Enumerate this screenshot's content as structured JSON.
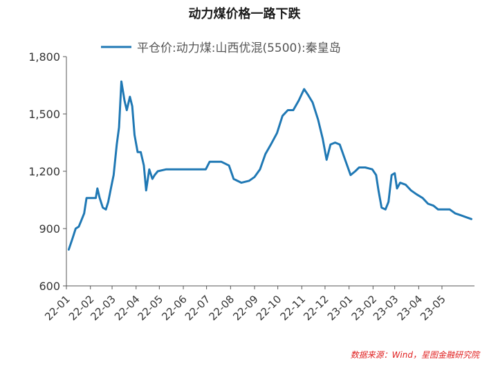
{
  "chart_data": {
    "type": "line",
    "title": "动力煤价格一路下跌",
    "source": "数据来源：Wind，星图金融研究院",
    "xlabel": "",
    "ylabel": "",
    "ylim": [
      600,
      1800
    ],
    "yticks": [
      600,
      900,
      1200,
      1500,
      1800
    ],
    "ytick_labels": [
      "600",
      "900",
      "1,200",
      "1,500",
      "1,800"
    ],
    "xlim": [
      "2022-01-01",
      "2023-06-12"
    ],
    "xticks": [
      {
        "date": "2022-01-01",
        "label": "22-01"
      },
      {
        "date": "2022-02-01",
        "label": "22-02"
      },
      {
        "date": "2022-03-01",
        "label": "22-03"
      },
      {
        "date": "2022-04-01",
        "label": "22-04"
      },
      {
        "date": "2022-05-01",
        "label": "22-05"
      },
      {
        "date": "2022-06-01",
        "label": "22-06"
      },
      {
        "date": "2022-07-01",
        "label": "22-07"
      },
      {
        "date": "2022-08-01",
        "label": "22-08"
      },
      {
        "date": "2022-09-01",
        "label": "22-09"
      },
      {
        "date": "2022-10-01",
        "label": "22-10"
      },
      {
        "date": "2022-11-01",
        "label": "22-11"
      },
      {
        "date": "2022-12-01",
        "label": "22-12"
      },
      {
        "date": "2023-01-01",
        "label": "23-01"
      },
      {
        "date": "2023-02-01",
        "label": "23-02"
      },
      {
        "date": "2023-03-01",
        "label": "23-03"
      },
      {
        "date": "2023-04-01",
        "label": "23-04"
      },
      {
        "date": "2023-05-01",
        "label": "23-05"
      }
    ],
    "grid": false,
    "legend_position": "top",
    "colors": {
      "series": "#1f78b4",
      "axis": "#555555",
      "source": "#e02020"
    },
    "series": [
      {
        "name": "平仓价:动力煤:山西优混(5500):秦皇岛",
        "points": [
          [
            "2022-01-04",
            790
          ],
          [
            "2022-01-09",
            850
          ],
          [
            "2022-01-13",
            900
          ],
          [
            "2022-01-17",
            910
          ],
          [
            "2022-01-20",
            940
          ],
          [
            "2022-01-24",
            980
          ],
          [
            "2022-01-27",
            1060
          ],
          [
            "2022-01-31",
            1060
          ],
          [
            "2022-02-04",
            1060
          ],
          [
            "2022-02-08",
            1060
          ],
          [
            "2022-02-10",
            1110
          ],
          [
            "2022-02-13",
            1060
          ],
          [
            "2022-02-17",
            1010
          ],
          [
            "2022-02-21",
            1000
          ],
          [
            "2022-02-24",
            1040
          ],
          [
            "2022-02-28",
            1120
          ],
          [
            "2022-03-03",
            1180
          ],
          [
            "2022-03-07",
            1340
          ],
          [
            "2022-03-10",
            1430
          ],
          [
            "2022-03-13",
            1670
          ],
          [
            "2022-03-17",
            1570
          ],
          [
            "2022-03-20",
            1520
          ],
          [
            "2022-03-24",
            1590
          ],
          [
            "2022-03-27",
            1540
          ],
          [
            "2022-03-30",
            1390
          ],
          [
            "2022-04-03",
            1300
          ],
          [
            "2022-04-07",
            1300
          ],
          [
            "2022-04-11",
            1230
          ],
          [
            "2022-04-14",
            1100
          ],
          [
            "2022-04-18",
            1210
          ],
          [
            "2022-04-22",
            1160
          ],
          [
            "2022-04-25",
            1180
          ],
          [
            "2022-04-29",
            1200
          ],
          [
            "2022-05-10",
            1210
          ],
          [
            "2022-06-01",
            1210
          ],
          [
            "2022-06-20",
            1210
          ],
          [
            "2022-06-30",
            1210
          ],
          [
            "2022-07-05",
            1250
          ],
          [
            "2022-07-20",
            1250
          ],
          [
            "2022-07-30",
            1230
          ],
          [
            "2022-08-05",
            1160
          ],
          [
            "2022-08-15",
            1140
          ],
          [
            "2022-08-25",
            1150
          ],
          [
            "2022-09-01",
            1170
          ],
          [
            "2022-09-08",
            1210
          ],
          [
            "2022-09-15",
            1290
          ],
          [
            "2022-09-22",
            1340
          ],
          [
            "2022-09-30",
            1400
          ],
          [
            "2022-10-07",
            1490
          ],
          [
            "2022-10-14",
            1520
          ],
          [
            "2022-10-21",
            1520
          ],
          [
            "2022-10-28",
            1570
          ],
          [
            "2022-11-04",
            1630
          ],
          [
            "2022-11-09",
            1600
          ],
          [
            "2022-11-15",
            1560
          ],
          [
            "2022-11-22",
            1470
          ],
          [
            "2022-11-28",
            1370
          ],
          [
            "2022-12-03",
            1260
          ],
          [
            "2022-12-08",
            1340
          ],
          [
            "2022-12-14",
            1350
          ],
          [
            "2022-12-20",
            1340
          ],
          [
            "2022-12-27",
            1260
          ],
          [
            "2023-01-03",
            1180
          ],
          [
            "2023-01-09",
            1200
          ],
          [
            "2023-01-14",
            1220
          ],
          [
            "2023-01-22",
            1220
          ],
          [
            "2023-01-31",
            1210
          ],
          [
            "2023-02-05",
            1180
          ],
          [
            "2023-02-08",
            1100
          ],
          [
            "2023-02-12",
            1010
          ],
          [
            "2023-02-17",
            1000
          ],
          [
            "2023-02-21",
            1040
          ],
          [
            "2023-02-25",
            1180
          ],
          [
            "2023-03-01",
            1190
          ],
          [
            "2023-03-04",
            1110
          ],
          [
            "2023-03-08",
            1140
          ],
          [
            "2023-03-15",
            1130
          ],
          [
            "2023-03-22",
            1100
          ],
          [
            "2023-03-29",
            1080
          ],
          [
            "2023-04-06",
            1060
          ],
          [
            "2023-04-13",
            1030
          ],
          [
            "2023-04-20",
            1020
          ],
          [
            "2023-04-26",
            1000
          ],
          [
            "2023-05-04",
            1000
          ],
          [
            "2023-05-11",
            1000
          ],
          [
            "2023-05-18",
            980
          ],
          [
            "2023-05-25",
            970
          ],
          [
            "2023-06-01",
            960
          ],
          [
            "2023-06-08",
            950
          ]
        ]
      }
    ]
  }
}
